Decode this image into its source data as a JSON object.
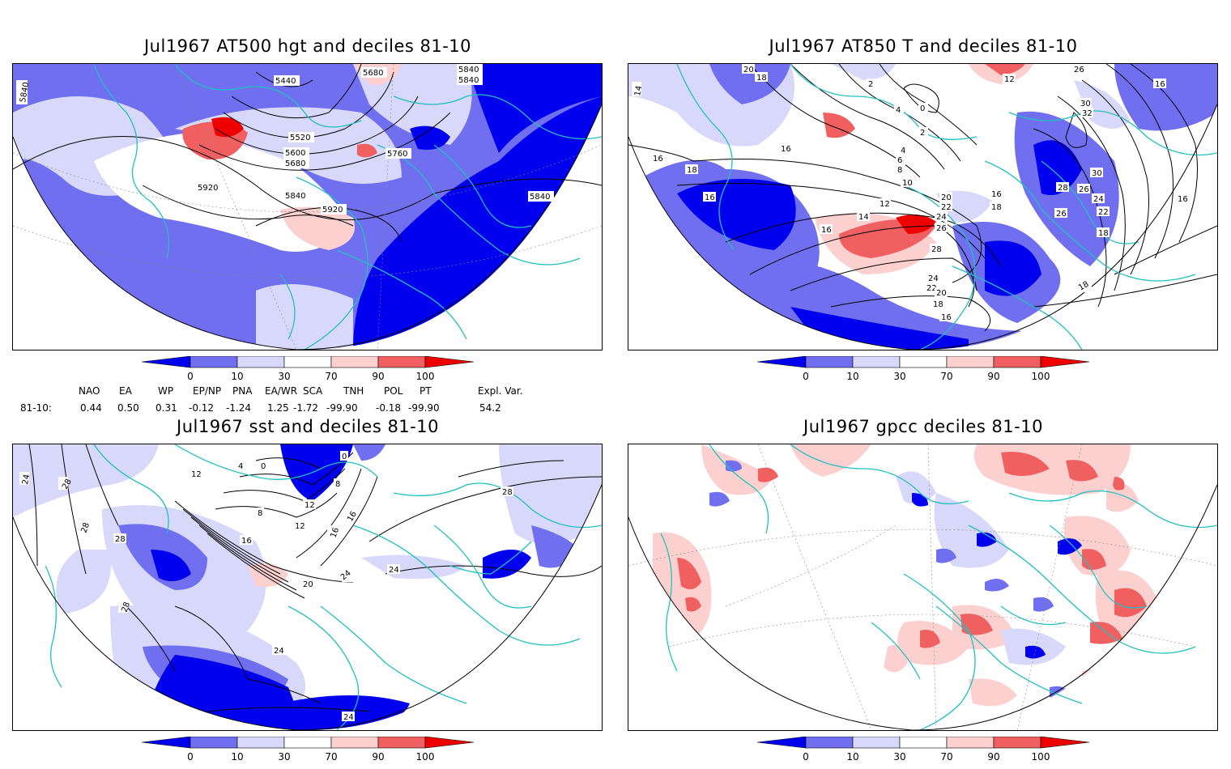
{
  "panels": [
    {
      "id": "p1",
      "title": "Jul1967 AT500 hgt and deciles 81-10",
      "contour_labels": [
        "5840",
        "5440",
        "5680",
        "5840",
        "5840",
        "5520",
        "5600",
        "5680",
        "5760",
        "5920",
        "5840",
        "5920",
        "5840"
      ]
    },
    {
      "id": "p2",
      "title": "Jul1967 AT850 T and deciles 81-10",
      "contour_labels": [
        "20",
        "18",
        "14",
        "2",
        "4",
        "0",
        "2",
        "4",
        "6",
        "8",
        "10",
        "12",
        "14",
        "16",
        "16",
        "18",
        "16",
        "16",
        "20",
        "22",
        "24",
        "26",
        "28",
        "24",
        "22",
        "20",
        "18",
        "16",
        "16",
        "18",
        "12",
        "16",
        "26",
        "30",
        "32",
        "28",
        "26",
        "24",
        "22",
        "26",
        "30",
        "18",
        "18",
        "16"
      ]
    },
    {
      "id": "p3",
      "title": "Jul1967 sst and deciles 81-10",
      "contour_labels": [
        "24",
        "28",
        "28",
        "28",
        "28",
        "12",
        "4",
        "0",
        "0",
        "8",
        "8",
        "12",
        "16",
        "12",
        "16",
        "16",
        "20",
        "24",
        "24",
        "24",
        "28",
        "24"
      ]
    },
    {
      "id": "p4",
      "title": "Jul1967 gpcc deciles 81-10",
      "contour_labels": []
    }
  ],
  "colorbar": {
    "ticks": [
      "0",
      "10",
      "30",
      "70",
      "90",
      "100"
    ],
    "colors": [
      "#0000ee",
      "#6f6ff0",
      "#d8d8fa",
      "#ffffff",
      "#fdd0d0",
      "#f06060",
      "#ee0000"
    ]
  },
  "indices": {
    "names": [
      "NAO",
      "EA",
      "WP",
      "EP/NP",
      "PNA",
      "EA/WR",
      "SCA",
      "TNH",
      "POL",
      "PT",
      "Expl. Var."
    ],
    "row_label": "81-10:",
    "values": [
      "0.44",
      "0.50",
      "0.31",
      "-0.12",
      "-1.24",
      "1.25",
      "-1.72",
      "-99.90",
      "-0.18",
      "-99.90",
      "54.2"
    ]
  },
  "colors": {
    "coast": "#20c0c0",
    "deep_blue": "#0000ee",
    "mid_blue": "#6f6ff0",
    "light_blue": "#d8d8fa",
    "light_red": "#fdd0d0",
    "mid_red": "#f06060",
    "deep_red": "#ee0000"
  }
}
